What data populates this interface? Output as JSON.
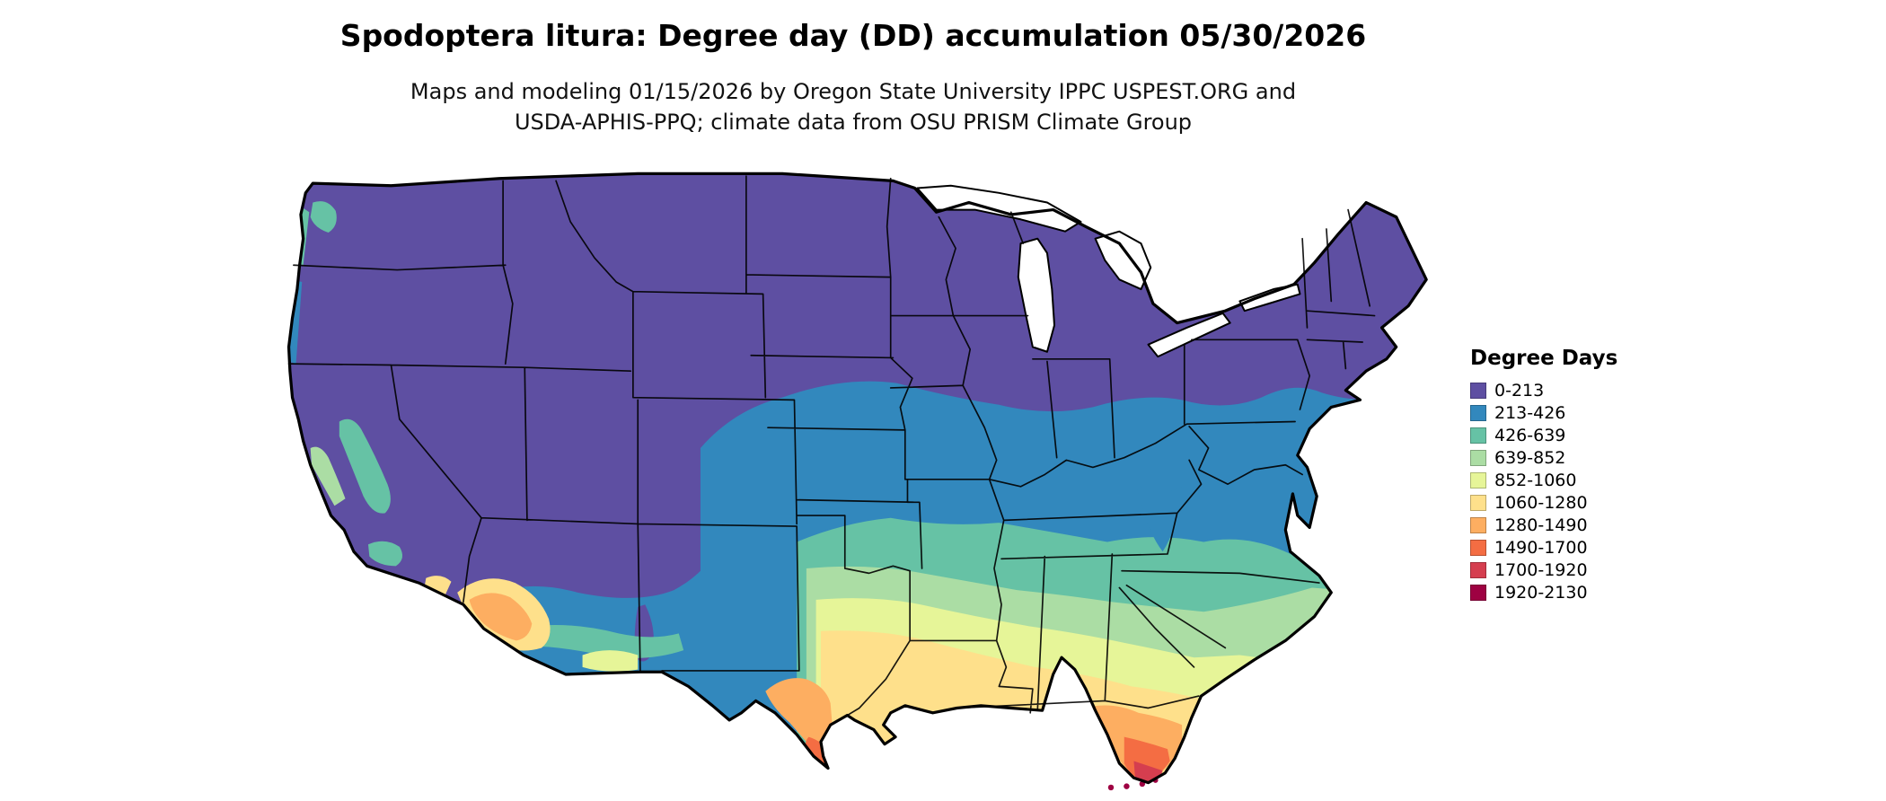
{
  "page": {
    "background": "#ffffff"
  },
  "header": {
    "title": "Spodoptera litura: Degree day (DD) accumulation 05/30/2026",
    "subtitle_line1": "Maps and modeling 01/15/2026 by Oregon State University IPPC USPEST.ORG and",
    "subtitle_line2": "USDA-APHIS-PPQ; climate data from OSU PRISM Climate Group"
  },
  "legend": {
    "title": "Degree Days",
    "items": [
      {
        "label": "0-213",
        "color": "#5e4fa2"
      },
      {
        "label": "213-426",
        "color": "#3288bd"
      },
      {
        "label": "426-639",
        "color": "#66c2a5"
      },
      {
        "label": "639-852",
        "color": "#abdda4"
      },
      {
        "label": "852-1060",
        "color": "#e6f598"
      },
      {
        "label": "1060-1280",
        "color": "#fee08b"
      },
      {
        "label": "1280-1490",
        "color": "#fdae61"
      },
      {
        "label": "1490-1700",
        "color": "#f46d43"
      },
      {
        "label": "1700-1920",
        "color": "#d53e4f"
      },
      {
        "label": "1920-2130",
        "color": "#9e0142"
      }
    ]
  },
  "map": {
    "region": "Continental United States (lower 48 states)",
    "description": "Classed degree-day accumulation raster; values increase from north to south, highest in southern Texas and southern Florida"
  },
  "chart_data": {
    "type": "heatmap",
    "title": "Spodoptera litura: Degree day (DD) accumulation 05/30/2026",
    "legend_title": "Degree Days",
    "classes": [
      {
        "range": "0-213",
        "color": "#5e4fa2"
      },
      {
        "range": "213-426",
        "color": "#3288bd"
      },
      {
        "range": "426-639",
        "color": "#66c2a5"
      },
      {
        "range": "639-852",
        "color": "#abdda4"
      },
      {
        "range": "852-1060",
        "color": "#e6f598"
      },
      {
        "range": "1060-1280",
        "color": "#fee08b"
      },
      {
        "range": "1280-1490",
        "color": "#fdae61"
      },
      {
        "range": "1490-1700",
        "color": "#f46d43"
      },
      {
        "range": "1700-1920",
        "color": "#d53e4f"
      },
      {
        "range": "1920-2130",
        "color": "#9e0142"
      }
    ],
    "spatial_pattern": "Lowest accumulation (0-213) across the northern tier and mountain west; bands increase southward; highest (1700-2130) at the southern tip of Texas and south Florida / Keys"
  }
}
